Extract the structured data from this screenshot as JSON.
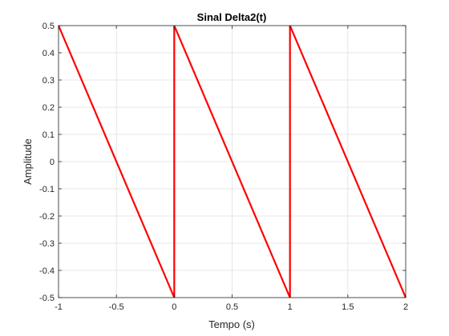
{
  "chart_data": {
    "type": "line",
    "title": "Sinal Delta2(t)",
    "xlabel": "Tempo (s)",
    "ylabel": "Amplitude",
    "xlim": [
      -1,
      2
    ],
    "ylim": [
      -0.5,
      0.5
    ],
    "xticks": [
      -1,
      -0.5,
      0,
      0.5,
      1,
      1.5,
      2
    ],
    "xtick_labels": [
      "-1",
      "-0.5",
      "0",
      "0.5",
      "1",
      "1.5",
      "2"
    ],
    "yticks": [
      -0.5,
      -0.4,
      -0.3,
      -0.2,
      -0.1,
      0,
      0.1,
      0.2,
      0.3,
      0.4,
      0.5
    ],
    "ytick_labels": [
      "-0.5",
      "-0.4",
      "-0.3",
      "-0.2",
      "-0.1",
      "0",
      "0.1",
      "0.2",
      "0.3",
      "0.4",
      "0.5"
    ],
    "grid": true,
    "series": [
      {
        "color": "#ff0000",
        "x": [
          -1,
          0,
          0,
          1,
          1,
          2
        ],
        "y": [
          0.5,
          -0.5,
          0.5,
          -0.5,
          0.5,
          -0.5
        ]
      }
    ]
  }
}
